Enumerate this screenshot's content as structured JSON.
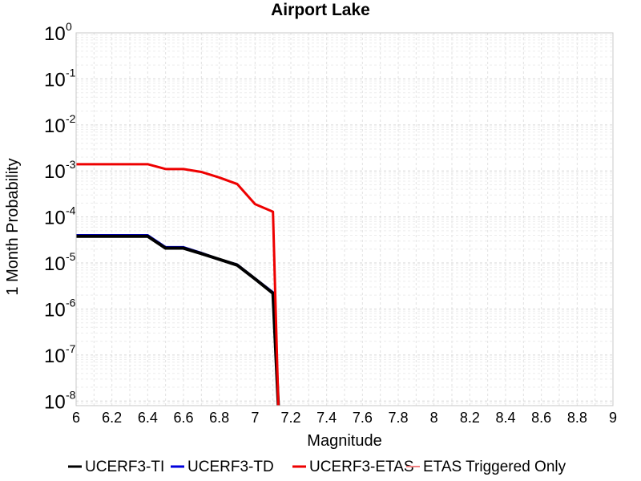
{
  "chart_data": {
    "type": "line",
    "title": "Airport Lake",
    "xlabel": "Magnitude",
    "ylabel": "1 Month Probability",
    "xlim": [
      6,
      9
    ],
    "ylim_log10": [
      -8.1,
      0
    ],
    "yscale": "log",
    "grid": true,
    "legend_position": "bottom",
    "x_ticks": [
      "6",
      "6.2",
      "6.4",
      "6.6",
      "6.8",
      "7",
      "7.2",
      "7.4",
      "7.6",
      "7.8",
      "8",
      "8.2",
      "8.4",
      "8.6",
      "8.8",
      "9"
    ],
    "y_tick_exponents": [
      "0",
      "-1",
      "-2",
      "-3",
      "-4",
      "-5",
      "-6",
      "-7",
      "-8"
    ],
    "y_tick_base": "10",
    "series": [
      {
        "name": "UCERF3-TI",
        "color": "#000000",
        "width": 4,
        "x": [
          6.0,
          6.1,
          6.2,
          6.3,
          6.4,
          6.5,
          6.6,
          6.7,
          6.8,
          6.9,
          7.0,
          7.1,
          7.13
        ],
        "y": [
          3.8e-05,
          3.8e-05,
          3.8e-05,
          3.8e-05,
          3.8e-05,
          2.1e-05,
          2.1e-05,
          1.6e-05,
          1.2e-05,
          9e-06,
          4.5e-06,
          2.2e-06,
          5e-09
        ]
      },
      {
        "name": "UCERF3-TD",
        "color": "#0000dd",
        "width": 3,
        "x": [
          6.0,
          6.1,
          6.2,
          6.3,
          6.4,
          6.5,
          6.6,
          6.7,
          6.8,
          6.9,
          7.0,
          7.1,
          7.13
        ],
        "y": [
          4e-05,
          4e-05,
          4e-05,
          4e-05,
          4e-05,
          2.2e-05,
          2.2e-05,
          1.65e-05,
          1.2e-05,
          9.2e-06,
          4.6e-06,
          2.3e-06,
          5e-09
        ]
      },
      {
        "name": "UCERF3-ETAS",
        "color": "#ee0000",
        "width": 3,
        "x": [
          6.0,
          6.1,
          6.2,
          6.3,
          6.4,
          6.5,
          6.6,
          6.7,
          6.8,
          6.9,
          7.0,
          7.1,
          7.13
        ],
        "y": [
          0.0014,
          0.0014,
          0.0014,
          0.0014,
          0.0014,
          0.0011,
          0.0011,
          0.00095,
          0.00072,
          0.00052,
          0.00019,
          0.00013,
          5e-09
        ]
      },
      {
        "name": "ETAS Triggered Only",
        "color": "#f08080",
        "width": 2,
        "x": [],
        "y": []
      }
    ]
  }
}
